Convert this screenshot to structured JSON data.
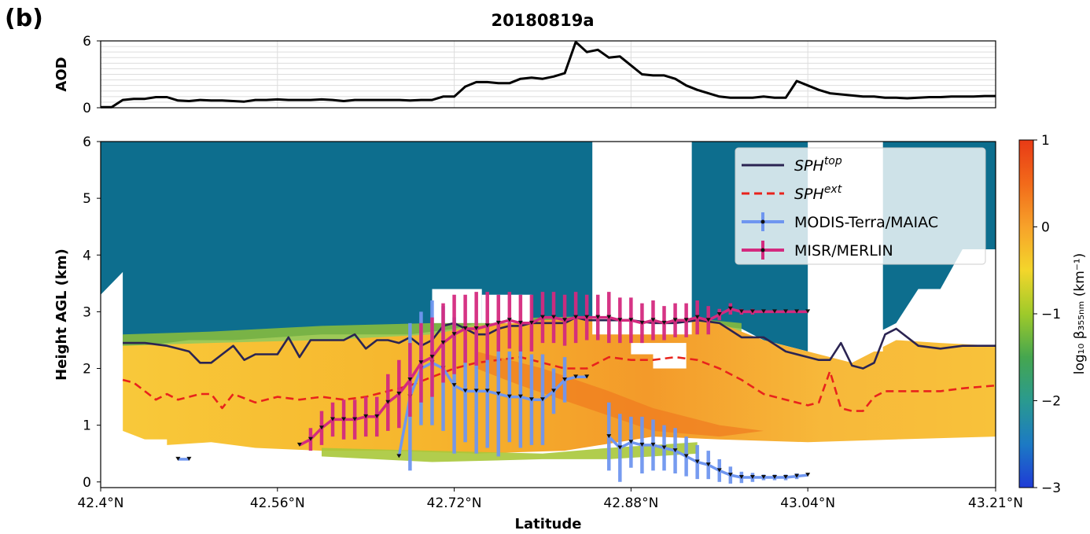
{
  "panel_label": "(b)",
  "title": "20180819a",
  "chart_data": [
    {
      "type": "line",
      "ylabel": "AOD",
      "ylim": [
        0,
        6
      ],
      "yticks": [
        "0",
        "6"
      ],
      "xlim": [
        42.4,
        43.21
      ],
      "grid": true,
      "series": [
        {
          "color": "#000000",
          "x": [
            42.4,
            42.41,
            42.42,
            42.43,
            42.44,
            42.45,
            42.46,
            42.47,
            42.48,
            42.49,
            42.5,
            42.51,
            42.52,
            42.53,
            42.54,
            42.55,
            42.56,
            42.57,
            42.58,
            42.59,
            42.6,
            42.61,
            42.62,
            42.63,
            42.64,
            42.65,
            42.66,
            42.67,
            42.68,
            42.69,
            42.7,
            42.71,
            42.72,
            42.73,
            42.74,
            42.75,
            42.76,
            42.77,
            42.78,
            42.79,
            42.8,
            42.81,
            42.82,
            42.83,
            42.84,
            42.85,
            42.86,
            42.87,
            42.88,
            42.89,
            42.9,
            42.91,
            42.92,
            42.93,
            42.94,
            42.95,
            42.96,
            42.97,
            42.98,
            42.99,
            43.0,
            43.01,
            43.02,
            43.03,
            43.04,
            43.05,
            43.06,
            43.07,
            43.08,
            43.09,
            43.1,
            43.11,
            43.12,
            43.13,
            43.14,
            43.15,
            43.16,
            43.17,
            43.18,
            43.19,
            43.2,
            43.21
          ],
          "values": [
            0.05,
            0.05,
            0.7,
            0.8,
            0.8,
            0.95,
            0.95,
            0.65,
            0.6,
            0.7,
            0.65,
            0.65,
            0.6,
            0.55,
            0.7,
            0.7,
            0.75,
            0.7,
            0.7,
            0.7,
            0.75,
            0.7,
            0.6,
            0.7,
            0.7,
            0.7,
            0.7,
            0.7,
            0.65,
            0.7,
            0.7,
            1.0,
            1.0,
            1.9,
            2.3,
            2.3,
            2.2,
            2.2,
            2.6,
            2.7,
            2.6,
            2.8,
            3.1,
            5.9,
            5.0,
            5.2,
            4.5,
            4.6,
            3.8,
            3.0,
            2.9,
            2.9,
            2.6,
            2.0,
            1.6,
            1.3,
            1.0,
            0.9,
            0.9,
            0.9,
            1.0,
            0.9,
            0.9,
            2.4,
            2.0,
            1.6,
            1.3,
            1.2,
            1.1,
            1.0,
            1.0,
            0.9,
            0.9,
            0.85,
            0.9,
            0.95,
            0.95,
            1.0,
            1.0,
            1.0,
            1.05,
            1.05
          ]
        }
      ]
    },
    {
      "type": "heatmap",
      "xlabel": "Latitude",
      "ylabel": "Height AGL (km)",
      "xlim": [
        42.4,
        43.21
      ],
      "ylim": [
        -0.1,
        6
      ],
      "xticks": [
        {
          "value": 42.4,
          "label": "42.4°N"
        },
        {
          "value": 42.56,
          "label": "42.56°N"
        },
        {
          "value": 42.72,
          "label": "42.72°N"
        },
        {
          "value": 42.88,
          "label": "42.88°N"
        },
        {
          "value": 43.04,
          "label": "43.04°N"
        },
        {
          "value": 43.21,
          "label": "43.21°N"
        }
      ],
      "yticks": [
        "0",
        "1",
        "2",
        "3",
        "4",
        "5",
        "6"
      ],
      "colorbar": {
        "label": "log₁₀ β₃₅₅ₙₘ (km⁻¹)",
        "min": -3,
        "max": 1,
        "ticks": [
          "1",
          "0",
          "−1",
          "−2",
          "−3"
        ],
        "colors": [
          "#1f3bd6",
          "#1c7ac4",
          "#2a9a8f",
          "#45a64f",
          "#9fca2a",
          "#f3d62b",
          "#f7a22a",
          "#f26a1a",
          "#e83a16"
        ]
      },
      "background_color": "#0d6e8e",
      "legend": {
        "position": "top-right",
        "entries": [
          {
            "label": "SPH",
            "sup": "top",
            "color": "#2b2452",
            "style": "solid"
          },
          {
            "label": "SPH",
            "sup": "ext",
            "color": "#e8231c",
            "style": "dashed"
          },
          {
            "label": "MODIS-Terra/MAIAC",
            "color": "#6f96f0",
            "style": "errorbar"
          },
          {
            "label": "MISR/MERLIN",
            "color": "#d42a7f",
            "style": "errorbar"
          }
        ]
      },
      "series": [
        {
          "name": "SPH^top",
          "color": "#2b2452",
          "x": [
            42.42,
            42.44,
            42.46,
            42.47,
            42.48,
            42.49,
            42.5,
            42.51,
            42.52,
            42.53,
            42.54,
            42.55,
            42.56,
            42.57,
            42.58,
            42.59,
            42.6,
            42.61,
            42.62,
            42.63,
            42.64,
            42.65,
            42.66,
            42.67,
            42.68,
            42.69,
            42.7,
            42.71,
            42.72,
            42.73,
            42.74,
            42.75,
            42.76,
            42.77,
            42.78,
            42.79,
            42.8,
            42.81,
            42.82,
            42.83,
            42.84,
            42.85,
            42.86,
            42.88,
            42.9,
            42.92,
            42.94,
            42.96,
            42.98,
            43.0,
            43.02,
            43.04,
            43.05,
            43.06,
            43.07,
            43.08,
            43.09,
            43.1,
            43.11,
            43.12,
            43.14,
            43.16,
            43.18,
            43.21
          ],
          "values": [
            2.45,
            2.45,
            2.4,
            2.35,
            2.3,
            2.1,
            2.1,
            2.25,
            2.4,
            2.15,
            2.25,
            2.25,
            2.25,
            2.55,
            2.2,
            2.5,
            2.5,
            2.5,
            2.5,
            2.6,
            2.35,
            2.5,
            2.5,
            2.45,
            2.55,
            2.4,
            2.5,
            2.75,
            2.8,
            2.7,
            2.6,
            2.6,
            2.7,
            2.75,
            2.75,
            2.8,
            2.8,
            2.8,
            2.8,
            2.9,
            2.85,
            2.85,
            2.85,
            2.85,
            2.8,
            2.8,
            2.85,
            2.8,
            2.55,
            2.55,
            2.3,
            2.2,
            2.15,
            2.15,
            2.45,
            2.05,
            2.0,
            2.1,
            2.6,
            2.7,
            2.4,
            2.35,
            2.4,
            2.4
          ]
        },
        {
          "name": "SPH^ext",
          "color": "#e8231c",
          "x": [
            42.42,
            42.43,
            42.44,
            42.45,
            42.46,
            42.47,
            42.48,
            42.49,
            42.5,
            42.51,
            42.52,
            42.54,
            42.56,
            42.58,
            42.6,
            42.62,
            42.64,
            42.66,
            42.68,
            42.7,
            42.72,
            42.74,
            42.76,
            42.78,
            42.8,
            42.82,
            42.84,
            42.86,
            42.88,
            42.9,
            42.92,
            42.94,
            42.96,
            42.98,
            43.0,
            43.02,
            43.04,
            43.05,
            43.06,
            43.07,
            43.08,
            43.09,
            43.1,
            43.11,
            43.12,
            43.14,
            43.16,
            43.18,
            43.21
          ],
          "values": [
            1.8,
            1.75,
            1.6,
            1.45,
            1.55,
            1.45,
            1.5,
            1.55,
            1.55,
            1.3,
            1.55,
            1.4,
            1.5,
            1.45,
            1.5,
            1.45,
            1.5,
            1.6,
            1.7,
            1.85,
            2.0,
            2.1,
            2.15,
            2.2,
            2.1,
            2.0,
            2.0,
            2.2,
            2.15,
            2.15,
            2.2,
            2.15,
            2.0,
            1.8,
            1.55,
            1.45,
            1.35,
            1.4,
            1.95,
            1.3,
            1.25,
            1.25,
            1.5,
            1.6,
            1.6,
            1.6,
            1.6,
            1.65,
            1.7
          ]
        },
        {
          "name": "MODIS-Terra/MAIAC",
          "color": "#6f96f0",
          "x": [
            42.67,
            42.68,
            42.69,
            42.7,
            42.71,
            42.72,
            42.73,
            42.74,
            42.75,
            42.76,
            42.77,
            42.78,
            42.79,
            42.8,
            42.81,
            42.82,
            42.83,
            42.84
          ],
          "values": [
            0.45,
            1.5,
            2.0,
            2.1,
            2.0,
            1.7,
            1.6,
            1.6,
            1.6,
            1.55,
            1.5,
            1.5,
            1.45,
            1.45,
            1.6,
            1.8,
            1.85,
            1.85
          ],
          "errors": [
            0.0,
            1.3,
            1.0,
            1.1,
            1.1,
            1.2,
            0.9,
            1.1,
            1.0,
            1.1,
            0.8,
            0.9,
            0.8,
            0.8,
            0.4,
            0.4,
            0.0,
            0.0
          ]
        },
        {
          "name": "MODIS-Terra/MAIAC (segment 2)",
          "color": "#6f96f0",
          "x": [
            42.86,
            42.87,
            42.88,
            42.89,
            42.9,
            42.91,
            42.92,
            42.93,
            42.94,
            42.95,
            42.96,
            42.97,
            42.98,
            42.99,
            43.0,
            43.01,
            43.02,
            43.03,
            43.04
          ],
          "values": [
            0.8,
            0.6,
            0.7,
            0.65,
            0.65,
            0.6,
            0.55,
            0.45,
            0.35,
            0.3,
            0.2,
            0.12,
            0.08,
            0.08,
            0.08,
            0.08,
            0.08,
            0.1,
            0.12
          ],
          "errors": [
            0.6,
            0.6,
            0.45,
            0.5,
            0.45,
            0.4,
            0.4,
            0.35,
            0.3,
            0.25,
            0.2,
            0.15,
            0.1,
            0.08,
            0.05,
            0.05,
            0.05,
            0.05,
            0.0
          ]
        },
        {
          "name": "MODIS-Terra/MAIAC (segment 3)",
          "color": "#6f96f0",
          "x": [
            42.47,
            42.48
          ],
          "values": [
            0.4,
            0.4
          ],
          "errors": [
            0,
            0
          ]
        },
        {
          "name": "MISR/MERLIN",
          "color": "#d42a7f",
          "x": [
            42.58,
            42.59,
            42.6,
            42.61,
            42.62,
            42.63,
            42.64,
            42.65,
            42.66,
            42.67,
            42.68,
            42.69,
            42.7,
            42.71,
            42.72,
            42.73,
            42.74,
            42.75,
            42.76,
            42.77,
            42.78,
            42.79,
            42.8,
            42.81,
            42.82,
            42.83,
            42.84,
            42.85,
            42.86,
            42.87,
            42.88,
            42.89,
            42.9,
            42.91,
            42.92,
            42.93,
            42.94,
            42.95,
            42.96,
            42.97,
            42.98,
            42.99,
            43.0,
            43.01,
            43.02,
            43.03,
            43.04
          ],
          "values": [
            0.65,
            0.75,
            0.95,
            1.1,
            1.1,
            1.1,
            1.15,
            1.15,
            1.4,
            1.55,
            1.8,
            2.1,
            2.2,
            2.45,
            2.6,
            2.7,
            2.7,
            2.75,
            2.8,
            2.85,
            2.8,
            2.8,
            2.9,
            2.9,
            2.85,
            2.9,
            2.9,
            2.9,
            2.9,
            2.85,
            2.85,
            2.8,
            2.85,
            2.8,
            2.85,
            2.85,
            2.9,
            2.85,
            2.95,
            3.05,
            3.0,
            3.0,
            3.0,
            3.0,
            3.0,
            3.0,
            3.0
          ],
          "errors": [
            0.0,
            0.2,
            0.3,
            0.3,
            0.35,
            0.35,
            0.35,
            0.35,
            0.5,
            0.6,
            0.65,
            0.7,
            0.7,
            0.7,
            0.7,
            0.6,
            0.65,
            0.6,
            0.5,
            0.5,
            0.5,
            0.5,
            0.45,
            0.45,
            0.45,
            0.45,
            0.4,
            0.4,
            0.45,
            0.4,
            0.4,
            0.35,
            0.35,
            0.3,
            0.3,
            0.3,
            0.3,
            0.25,
            0.1,
            0.1,
            0.05,
            0.05,
            0.0,
            0.0,
            0.0,
            0.0,
            0.0
          ]
        }
      ]
    }
  ]
}
